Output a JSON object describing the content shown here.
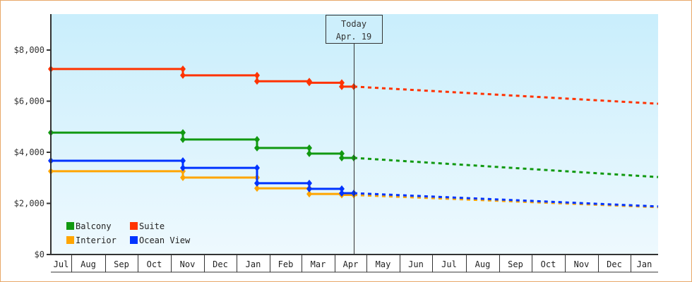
{
  "chart_data": {
    "type": "line",
    "title": "",
    "xlabel": "",
    "ylabel": "",
    "ylim": [
      0,
      9379
    ],
    "y_ticks": [
      "$0",
      "$2,000",
      "$4,000",
      "$6,000",
      "$8,000"
    ],
    "y_tick_values": [
      0,
      2000,
      4000,
      6000,
      8000
    ],
    "x_ticks": [
      "Jul",
      "Aug",
      "Sep",
      "Oct",
      "Nov",
      "Dec",
      "Jan",
      "Feb",
      "Mar",
      "Apr",
      "May",
      "Jun",
      "Jul",
      "Aug",
      "Sep",
      "Oct",
      "Nov",
      "Dec",
      "Jan"
    ],
    "grid": false,
    "legend_position": "bottom-left",
    "annotation": {
      "line1": "Today",
      "line2": "Apr. 19",
      "x_month_index": 9.6
    },
    "step": true,
    "series": [
      {
        "name": "Balcony",
        "color": "#119911",
        "points": [
          {
            "x": "Jul",
            "y": 4770
          },
          {
            "x": "Nov",
            "y": 4770
          },
          {
            "x": "Nov",
            "y": 4500
          },
          {
            "x": "Jan",
            "y": 4500
          },
          {
            "x": "Jan",
            "y": 4170
          },
          {
            "x": "Mar",
            "y": 4170
          },
          {
            "x": "Mar",
            "y": 3950
          },
          {
            "x": "Apr",
            "y": 3950
          },
          {
            "x": "Apr",
            "y": 3780
          },
          {
            "x": "Apr 19",
            "y": 3780
          }
        ],
        "forecast": [
          {
            "x": "Apr 19",
            "y": 3780
          },
          {
            "x": "Jan",
            "y": 3030
          }
        ]
      },
      {
        "name": "Suite",
        "color": "#ff3300",
        "points": [
          {
            "x": "Jul",
            "y": 7260
          },
          {
            "x": "Nov",
            "y": 7260
          },
          {
            "x": "Nov",
            "y": 7010
          },
          {
            "x": "Jan",
            "y": 7010
          },
          {
            "x": "Jan",
            "y": 6780
          },
          {
            "x": "Mar",
            "y": 6780
          },
          {
            "x": "Mar",
            "y": 6720
          },
          {
            "x": "Apr",
            "y": 6720
          },
          {
            "x": "Apr",
            "y": 6570
          },
          {
            "x": "Apr 19",
            "y": 6570
          }
        ],
        "forecast": [
          {
            "x": "Apr 19",
            "y": 6570
          },
          {
            "x": "Jan",
            "y": 5900
          }
        ]
      },
      {
        "name": "Interior",
        "color": "#ffa500",
        "points": [
          {
            "x": "Jul",
            "y": 3260
          },
          {
            "x": "Nov",
            "y": 3260
          },
          {
            "x": "Nov",
            "y": 3010
          },
          {
            "x": "Jan",
            "y": 3010
          },
          {
            "x": "Jan",
            "y": 2590
          },
          {
            "x": "Mar",
            "y": 2590
          },
          {
            "x": "Mar",
            "y": 2370
          },
          {
            "x": "Apr",
            "y": 2370
          },
          {
            "x": "Apr",
            "y": 2330
          },
          {
            "x": "Apr 19",
            "y": 2330
          }
        ],
        "forecast": [
          {
            "x": "Apr 19",
            "y": 2330
          },
          {
            "x": "Jan",
            "y": 1850
          }
        ]
      },
      {
        "name": "Ocean View",
        "color": "#0033ff",
        "points": [
          {
            "x": "Jul",
            "y": 3670
          },
          {
            "x": "Nov",
            "y": 3670
          },
          {
            "x": "Nov",
            "y": 3390
          },
          {
            "x": "Jan",
            "y": 3390
          },
          {
            "x": "Jan",
            "y": 2790
          },
          {
            "x": "Mar",
            "y": 2790
          },
          {
            "x": "Mar",
            "y": 2570
          },
          {
            "x": "Apr",
            "y": 2570
          },
          {
            "x": "Apr",
            "y": 2400
          },
          {
            "x": "Apr 19",
            "y": 2400
          }
        ],
        "forecast": [
          {
            "x": "Apr 19",
            "y": 2400
          },
          {
            "x": "Jan",
            "y": 1880
          }
        ]
      }
    ]
  },
  "legend": [
    {
      "label": "Balcony",
      "color": "#119911"
    },
    {
      "label": "Suite",
      "color": "#ff3300"
    },
    {
      "label": "Interior",
      "color": "#ffa500"
    },
    {
      "label": "Ocean View",
      "color": "#0033ff"
    }
  ]
}
